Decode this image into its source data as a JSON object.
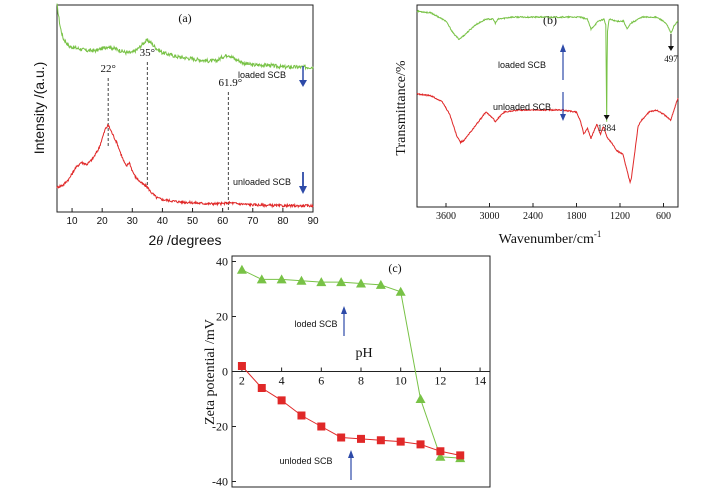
{
  "colors": {
    "green": "#78c246",
    "red": "#e02828",
    "arrow": "#2d4aa8",
    "black": "#111111"
  },
  "chart_data": [
    {
      "panel": "(a)",
      "type": "line",
      "xlabel_prefix": "2",
      "xlabel_theta": "θ",
      "xlabel_suffix": " /degrees",
      "ylabel": "Intensity /(a.u.)",
      "xlim": [
        5,
        90
      ],
      "xticks": [
        10,
        20,
        30,
        40,
        50,
        60,
        70,
        80,
        90
      ],
      "peaks": [
        {
          "x": 22,
          "label": "22°"
        },
        {
          "x": 35,
          "label": "35°"
        },
        {
          "x": 61.9,
          "label": "61.9°"
        }
      ],
      "series": [
        {
          "name": "loaded SCB",
          "color": "#78c246",
          "x": [
            5,
            6,
            7,
            9,
            12,
            15,
            18,
            20,
            22,
            24,
            26,
            28,
            30,
            32,
            34,
            35,
            36,
            38,
            40,
            45,
            50,
            55,
            58,
            60,
            61.9,
            64,
            67,
            70,
            75,
            80,
            85,
            90
          ],
          "y": [
            1.0,
            0.9,
            0.84,
            0.8,
            0.79,
            0.78,
            0.78,
            0.79,
            0.8,
            0.79,
            0.78,
            0.77,
            0.77,
            0.79,
            0.82,
            0.83,
            0.82,
            0.79,
            0.77,
            0.75,
            0.74,
            0.73,
            0.73,
            0.75,
            0.76,
            0.74,
            0.72,
            0.71,
            0.71,
            0.7,
            0.7,
            0.7
          ]
        },
        {
          "name": "unloaded SCB",
          "color": "#e02828",
          "x": [
            5,
            7,
            9,
            11,
            13,
            15,
            17,
            19,
            21,
            22,
            23,
            25,
            27,
            28,
            29,
            30,
            31,
            33,
            35,
            36,
            38,
            40,
            45,
            50,
            55,
            60,
            62,
            65,
            70,
            80,
            90
          ],
          "y": [
            0.12,
            0.13,
            0.16,
            0.21,
            0.24,
            0.23,
            0.26,
            0.31,
            0.4,
            0.42,
            0.39,
            0.33,
            0.25,
            0.22,
            0.24,
            0.2,
            0.17,
            0.14,
            0.12,
            0.1,
            0.07,
            0.06,
            0.05,
            0.045,
            0.04,
            0.04,
            0.045,
            0.04,
            0.035,
            0.03,
            0.03
          ]
        }
      ]
    },
    {
      "panel": "(b)",
      "type": "line",
      "xlabel": "Wavenumber/cm",
      "xlabel_sup": "-1",
      "ylabel": "Transmittance/%",
      "xlim": [
        4000,
        400
      ],
      "xticks": [
        3600,
        3000,
        2400,
        1800,
        1200,
        600
      ],
      "annotations": [
        {
          "x": 1384,
          "label": "1384"
        },
        {
          "x": 497,
          "label": "497"
        }
      ],
      "series": [
        {
          "name": "loaded SCB",
          "color": "#78c246",
          "x": [
            4000,
            3800,
            3600,
            3500,
            3420,
            3350,
            3200,
            3050,
            2950,
            2920,
            2880,
            2700,
            2400,
            2100,
            1900,
            1750,
            1650,
            1600,
            1500,
            1420,
            1395,
            1384,
            1375,
            1350,
            1250,
            1150,
            1100,
            1050,
            900,
            800,
            700,
            600,
            550,
            497,
            450,
            400
          ],
          "y": [
            0.97,
            0.96,
            0.92,
            0.86,
            0.83,
            0.85,
            0.9,
            0.93,
            0.93,
            0.91,
            0.93,
            0.94,
            0.94,
            0.94,
            0.94,
            0.94,
            0.93,
            0.88,
            0.92,
            0.93,
            0.9,
            0.42,
            0.86,
            0.93,
            0.92,
            0.92,
            0.88,
            0.91,
            0.94,
            0.94,
            0.94,
            0.92,
            0.9,
            0.86,
            0.9,
            0.92
          ]
        },
        {
          "name": "unloaded SCB",
          "color": "#e02828",
          "x": [
            4000,
            3800,
            3650,
            3550,
            3450,
            3400,
            3350,
            3200,
            3050,
            2950,
            2920,
            2880,
            2800,
            2600,
            2400,
            2200,
            2000,
            1800,
            1740,
            1700,
            1650,
            1600,
            1520,
            1470,
            1430,
            1400,
            1384,
            1370,
            1320,
            1250,
            1160,
            1110,
            1060,
            1040,
            1000,
            950,
            900,
            800,
            700,
            600,
            500,
            420,
            400
          ],
          "y": [
            0.56,
            0.55,
            0.52,
            0.46,
            0.35,
            0.32,
            0.33,
            0.4,
            0.47,
            0.44,
            0.42,
            0.44,
            0.47,
            0.48,
            0.48,
            0.48,
            0.48,
            0.47,
            0.42,
            0.36,
            0.39,
            0.34,
            0.41,
            0.36,
            0.4,
            0.37,
            0.35,
            0.34,
            0.32,
            0.28,
            0.26,
            0.19,
            0.12,
            0.15,
            0.26,
            0.4,
            0.43,
            0.47,
            0.48,
            0.46,
            0.43,
            0.52,
            0.54
          ]
        }
      ]
    },
    {
      "panel": "(c)",
      "type": "scatter",
      "xlabel": "pH",
      "ylabel": "Zeta potential /mV",
      "xlim": [
        1.5,
        14.5
      ],
      "ylim": [
        -42,
        42
      ],
      "xticks": [
        2,
        4,
        6,
        8,
        10,
        12,
        14
      ],
      "yticks": [
        -40,
        -20,
        0,
        20,
        40
      ],
      "series": [
        {
          "name": "loded SCB",
          "color": "#78c246",
          "marker": "triangle",
          "x": [
            2,
            3,
            4,
            5,
            6,
            7,
            8,
            9,
            10,
            11,
            12,
            13
          ],
          "y": [
            37,
            33.5,
            33.5,
            33,
            32.5,
            32.5,
            32,
            31.5,
            29,
            -10,
            -31,
            -31.5
          ]
        },
        {
          "name": "unloded SCB",
          "color": "#e02828",
          "marker": "square",
          "x": [
            2,
            3,
            4,
            5,
            6,
            7,
            8,
            9,
            10,
            11,
            12,
            13
          ],
          "y": [
            2,
            -6,
            -10.5,
            -16,
            -20,
            -24,
            -24.5,
            -25,
            -25.5,
            -26.5,
            -29,
            -30.5
          ]
        }
      ]
    }
  ]
}
